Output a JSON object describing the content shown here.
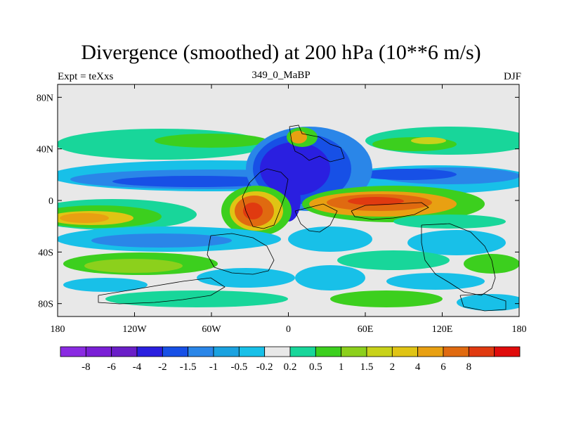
{
  "header": {
    "title": "Divergence (smoothed) at 200 hPa (10**6 m/s)",
    "left_label": "Expt = teXxs",
    "center_label": "349_0_MaBP",
    "right_label": "DJF"
  },
  "colors": {
    "levels_palette": [
      "#8a2be2",
      "#7a1fd6",
      "#6a1ec8",
      "#2a1fe0",
      "#1750e6",
      "#2a86e8",
      "#1aa2e0",
      "#18c0e8",
      "#e8e8e8",
      "#18d69a",
      "#3ccf1e",
      "#8cd01c",
      "#c8d21a",
      "#e0c414",
      "#e8a012",
      "#e06a10",
      "#e03a10",
      "#e00c0c"
    ],
    "gray": "#e8e8e8"
  },
  "chart_data": {
    "type": "heatmap",
    "title": "Divergence (smoothed) at 200 hPa (10**6 m/s)",
    "xlabel": "",
    "ylabel": "",
    "xlim": [
      -180,
      180
    ],
    "ylim": [
      -90,
      90
    ],
    "x_ticks": [
      -180,
      -120,
      -60,
      0,
      60,
      120,
      180
    ],
    "x_tick_labels": [
      "180",
      "120W",
      "60W",
      "0",
      "60E",
      "120E",
      "180"
    ],
    "y_ticks": [
      80,
      40,
      0,
      -40,
      -80
    ],
    "y_tick_labels": [
      "80N",
      "40N",
      "0",
      "40S",
      "80S"
    ],
    "colorbar_labels": [
      "-8",
      "-6",
      "-4",
      "-2",
      "-1.5",
      "-1",
      "-0.5",
      "-0.2",
      "0.2",
      "0.5",
      "1",
      "1.5",
      "2",
      "4",
      "6",
      "8"
    ],
    "colorbar_colors": [
      "#8a2be2",
      "#7a1fd6",
      "#6a1ec8",
      "#2a1fe0",
      "#1750e6",
      "#2a86e8",
      "#1aa2e0",
      "#18c0e8",
      "#e8e8e8",
      "#18d69a",
      "#3ccf1e",
      "#8cd01c",
      "#c8d21a",
      "#e0c414",
      "#e8a012",
      "#e06a10",
      "#e03a10",
      "#e00c0c"
    ],
    "colorbar_position": "bottom",
    "grid": false
  }
}
